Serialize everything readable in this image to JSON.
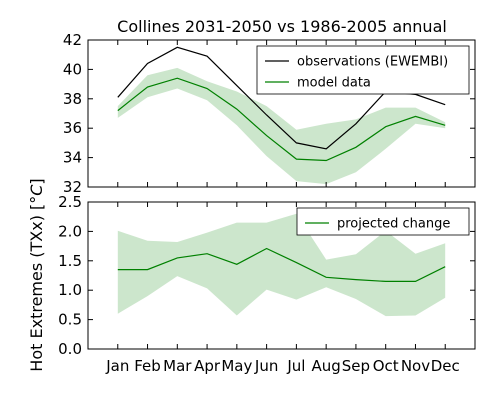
{
  "chart_data": [
    {
      "type": "line",
      "title": "Collines 2031-2050 vs 1986-2005 annual",
      "ylabel": "Hot Extremes (TXx) [$^\\circ C$]",
      "ylabel_text": "Hot Extremes (TXx) [",
      "ylabel_unit": "°C",
      "ylabel_close": "]",
      "categories": [
        "Jan",
        "Feb",
        "Mar",
        "Apr",
        "May",
        "Jun",
        "Jul",
        "Aug",
        "Sep",
        "Oct",
        "Nov",
        "Dec"
      ],
      "ylim": [
        32,
        42
      ],
      "yticks": [
        "32",
        "34",
        "36",
        "38",
        "40",
        "42"
      ],
      "legend_position": "top-right",
      "series": [
        {
          "name": "observations (EWEMBI)",
          "color": "#000000",
          "values": [
            38.1,
            40.4,
            41.5,
            40.9,
            38.9,
            36.9,
            35.0,
            34.6,
            36.3,
            38.5,
            38.3,
            37.6
          ]
        },
        {
          "name": "model data",
          "color": "#008000",
          "values": [
            37.2,
            38.8,
            39.4,
            38.7,
            37.3,
            35.5,
            33.9,
            33.8,
            34.7,
            36.1,
            36.8,
            36.2
          ]
        }
      ],
      "band": {
        "color": "#008000",
        "lower": [
          36.7,
          38.1,
          38.7,
          37.9,
          36.2,
          34.1,
          32.4,
          32.2,
          33.0,
          34.6,
          36.3,
          36.0
        ],
        "upper": [
          37.5,
          39.6,
          40.1,
          39.2,
          38.5,
          37.5,
          35.9,
          36.3,
          36.6,
          37.4,
          37.4,
          36.4
        ]
      }
    },
    {
      "type": "line",
      "categories": [
        "Jan",
        "Feb",
        "Mar",
        "Apr",
        "May",
        "Jun",
        "Jul",
        "Aug",
        "Sep",
        "Oct",
        "Nov",
        "Dec"
      ],
      "ylim": [
        0,
        2.5
      ],
      "yticks": [
        "0.0",
        "0.5",
        "1.0",
        "1.5",
        "2.0",
        "2.5"
      ],
      "legend_position": "top-right",
      "series": [
        {
          "name": "projected change",
          "color": "#008000",
          "values": [
            1.35,
            1.35,
            1.55,
            1.62,
            1.44,
            1.71,
            1.47,
            1.22,
            1.18,
            1.15,
            1.15,
            1.4
          ]
        }
      ],
      "band": {
        "color": "#008000",
        "lower": [
          0.6,
          0.9,
          1.24,
          1.03,
          0.57,
          1.01,
          0.84,
          1.05,
          0.85,
          0.56,
          0.57,
          0.87
        ],
        "upper": [
          2.01,
          1.84,
          1.82,
          1.98,
          2.15,
          2.15,
          2.3,
          1.52,
          1.61,
          2.01,
          1.62,
          1.8
        ]
      }
    }
  ]
}
